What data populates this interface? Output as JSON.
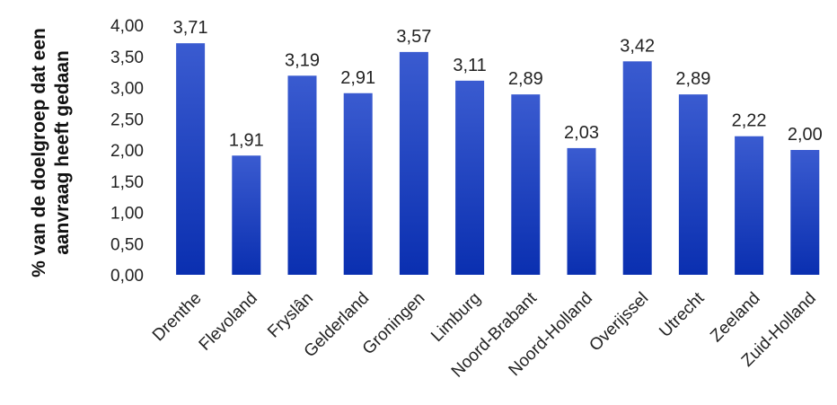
{
  "chart_data": {
    "type": "bar",
    "ylabel_lines": [
      "% van de doelgroep dat een",
      "aanvraag heeft gedaan"
    ],
    "categories": [
      "Drenthe",
      "Flevoland",
      "Fryslân",
      "Gelderland",
      "Groningen",
      "Limburg",
      "Noord-Brabant",
      "Noord-Holland",
      "Overijssel",
      "Utrecht",
      "Zeeland",
      "Zuid-Holland"
    ],
    "values": [
      3.71,
      1.91,
      3.19,
      2.91,
      3.57,
      3.11,
      2.89,
      2.03,
      3.42,
      2.89,
      2.22,
      2.0
    ],
    "value_labels": [
      "3,71",
      "1,91",
      "3,19",
      "2,91",
      "3,57",
      "3,11",
      "2,89",
      "2,03",
      "3,42",
      "2,89",
      "2,22",
      "2,00"
    ],
    "ylim": [
      0,
      4
    ],
    "yticks": [
      0,
      0.5,
      1,
      1.5,
      2,
      2.5,
      3,
      3.5,
      4
    ],
    "ytick_labels": [
      "0,00",
      "0,50",
      "1,00",
      "1,50",
      "2,00",
      "2,50",
      "3,00",
      "3,50",
      "4,00"
    ],
    "grid": false,
    "legend": "none",
    "colors": {
      "bar_top": "#3a5bd0",
      "bar_bottom": "#0a2fb0"
    }
  }
}
